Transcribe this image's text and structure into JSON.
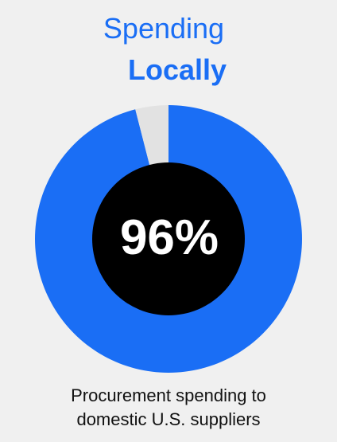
{
  "colors": {
    "background": "#f0f0f0",
    "accent": "#1a6ef5",
    "remainder": "#e2e2e2",
    "center": "#000000",
    "center_text": "#ffffff",
    "caption_text": "#111111"
  },
  "chart_data": {
    "type": "pie",
    "title": "Spending Locally",
    "title_lines": [
      "Spending",
      "Locally"
    ],
    "center_label": "96%",
    "caption": "Procurement spending to domestic U.S. suppliers",
    "caption_lines": [
      "Procurement spending to",
      "domestic U.S. suppliers"
    ],
    "categories": [
      "",
      ""
    ],
    "values": [
      96,
      4
    ],
    "legend": "none"
  }
}
